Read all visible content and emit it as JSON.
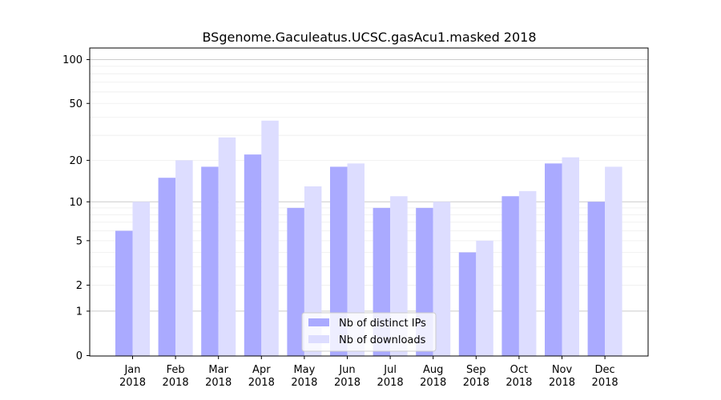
{
  "chart_data": {
    "type": "bar",
    "title": "BSgenome.Gaculeatus.UCSC.gasAcu1.masked 2018",
    "xlabel": "",
    "ylabel": "",
    "y_scale": "log(1+y)",
    "ylim": [
      0,
      120
    ],
    "yticks": [
      "0",
      "1",
      "2",
      "5",
      "10",
      "20",
      "50",
      "100"
    ],
    "grid": "horizontal",
    "legend_position": "bottom-center",
    "categories": [
      {
        "month": "Jan",
        "year": "2018"
      },
      {
        "month": "Feb",
        "year": "2018"
      },
      {
        "month": "Mar",
        "year": "2018"
      },
      {
        "month": "Apr",
        "year": "2018"
      },
      {
        "month": "May",
        "year": "2018"
      },
      {
        "month": "Jun",
        "year": "2018"
      },
      {
        "month": "Jul",
        "year": "2018"
      },
      {
        "month": "Aug",
        "year": "2018"
      },
      {
        "month": "Sep",
        "year": "2018"
      },
      {
        "month": "Oct",
        "year": "2018"
      },
      {
        "month": "Nov",
        "year": "2018"
      },
      {
        "month": "Dec",
        "year": "2018"
      }
    ],
    "series": [
      {
        "name": "Nb of distinct IPs",
        "color": "#aaaaff",
        "values": [
          6,
          15,
          18,
          22,
          9,
          18,
          9,
          9,
          4,
          11,
          19,
          10
        ]
      },
      {
        "name": "Nb of downloads",
        "color": "#ddddff",
        "values": [
          10,
          20,
          29,
          38,
          13,
          19,
          11,
          10,
          5,
          12,
          21,
          18
        ]
      }
    ]
  }
}
